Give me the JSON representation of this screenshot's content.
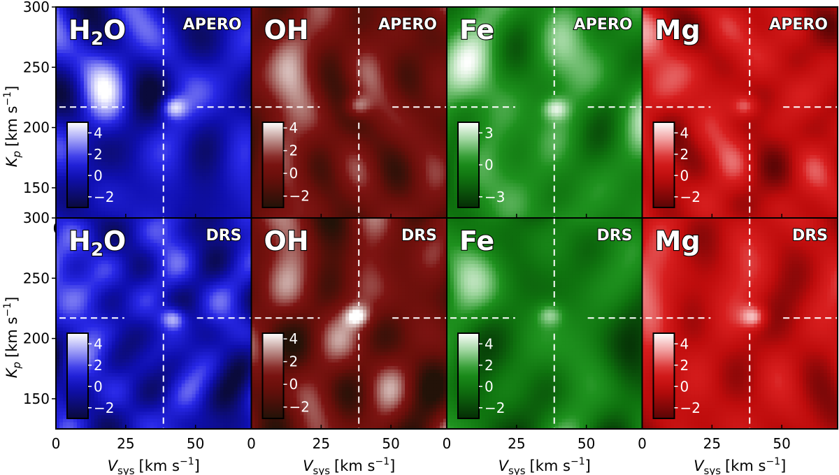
{
  "chart_data": {
    "type": "heatmap",
    "axes": {
      "xlabel_main": "V",
      "xlabel_sub": "sys",
      "xlabel_unit": "[km s",
      "xlabel_exp": "−1",
      "xlabel_close": "]",
      "ylabel_main": "K",
      "ylabel_sub": "p",
      "ylabel_unit": "[km s",
      "ylabel_exp": "−1",
      "ylabel_close": "]",
      "xlim": [
        0,
        70
      ],
      "ylim": [
        125,
        300
      ],
      "xticks": [
        0,
        25,
        50
      ],
      "yticks": [
        150,
        200,
        250,
        300
      ],
      "yticks_text": [
        "150",
        "200",
        "250",
        "300"
      ],
      "xticks_text": [
        "0",
        "25",
        "50"
      ],
      "stray_tick_text": "0"
    },
    "crosshair": {
      "vsys": 38.5,
      "kp": 217
    },
    "rows": [
      {
        "pipeline": "APERO",
        "panels": [
          {
            "species": "H",
            "species_sub": "2",
            "species_tail": "O",
            "colormap": "blue",
            "cbar_ticks": [
              4,
              2,
              0,
              -2
            ],
            "cbar_text": [
              "4",
              "2",
              "0",
              "−2"
            ],
            "vmin": -3,
            "vmax": 5,
            "peak": {
              "vsys": 42,
              "kp": 217,
              "snr": 4.8
            }
          },
          {
            "species": "OH",
            "species_sub": "",
            "species_tail": "",
            "colormap": "red-dark",
            "cbar_ticks": [
              4,
              2,
              0,
              -2
            ],
            "cbar_text": [
              "4",
              "2",
              "0",
              "−2"
            ],
            "vmin": -3,
            "vmax": 4.5,
            "peak": {
              "vsys": 38,
              "kp": 218,
              "snr": 4.2
            }
          },
          {
            "species": "Fe",
            "species_sub": "",
            "species_tail": "",
            "colormap": "green",
            "cbar_ticks": [
              3,
              0,
              -3
            ],
            "cbar_text": [
              "3",
              "0",
              "−3"
            ],
            "vmin": -4,
            "vmax": 4,
            "peak": {
              "vsys": 39,
              "kp": 216,
              "snr": 3.9
            }
          },
          {
            "species": "Mg",
            "species_sub": "",
            "species_tail": "",
            "colormap": "red",
            "cbar_ticks": [
              4,
              2,
              0,
              -2
            ],
            "cbar_text": [
              "4",
              "2",
              "0",
              "−2"
            ],
            "vmin": -3,
            "vmax": 5,
            "peak": {
              "vsys": 37,
              "kp": 218,
              "snr": 3.6
            }
          }
        ]
      },
      {
        "pipeline": "DRS",
        "panels": [
          {
            "species": "H",
            "species_sub": "2",
            "species_tail": "O",
            "colormap": "blue",
            "cbar_ticks": [
              4,
              2,
              0,
              -2
            ],
            "cbar_text": [
              "4",
              "2",
              "0",
              "−2"
            ],
            "vmin": -3,
            "vmax": 5,
            "peak": {
              "vsys": 42,
              "kp": 217,
              "snr": 4.6
            }
          },
          {
            "species": "OH",
            "species_sub": "",
            "species_tail": "",
            "colormap": "red-dark",
            "cbar_ticks": [
              4,
              2,
              0,
              -2
            ],
            "cbar_text": [
              "4",
              "2",
              "0",
              "−2"
            ],
            "vmin": -3,
            "vmax": 4.5,
            "peak": {
              "vsys": 38,
              "kp": 219,
              "snr": 4.4
            }
          },
          {
            "species": "Fe",
            "species_sub": "",
            "species_tail": "",
            "colormap": "green",
            "cbar_ticks": [
              4,
              2,
              0,
              -2
            ],
            "cbar_text": [
              "4",
              "2",
              "0",
              "−2"
            ],
            "vmin": -3,
            "vmax": 5,
            "peak": {
              "vsys": 37,
              "kp": 220,
              "snr": 3.2
            }
          },
          {
            "species": "Mg",
            "species_sub": "",
            "species_tail": "",
            "colormap": "red",
            "cbar_ticks": [
              4,
              2,
              0,
              -2
            ],
            "cbar_text": [
              "4",
              "2",
              "0",
              "−2"
            ],
            "vmin": -3,
            "vmax": 5,
            "peak": {
              "vsys": 40,
              "kp": 218,
              "snr": 4.3
            }
          }
        ]
      }
    ]
  }
}
